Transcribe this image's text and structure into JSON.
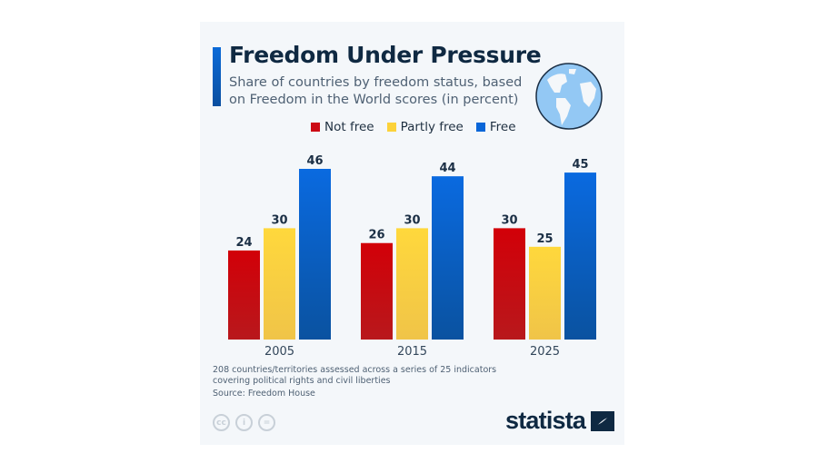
{
  "header": {
    "title": "Freedom Under Pressure",
    "subtitle": "Share of countries by freedom status, based on Freedom in the World scores (in percent)"
  },
  "icons": {
    "globe": "globe-icon",
    "cc": "cc-icon",
    "by": "attribution-icon",
    "nd": "no-derivatives-icon",
    "logo": "statista-logo"
  },
  "legend": [
    {
      "label": "Not free",
      "color": "#cc0a14"
    },
    {
      "label": "Partly free",
      "color": "#fcd23a"
    },
    {
      "label": "Free",
      "color": "#0a66d8"
    }
  ],
  "chart_data": {
    "type": "bar",
    "title": "Freedom Under Pressure",
    "subtitle": "Share of countries by freedom status, based on Freedom in the World scores (in percent)",
    "categories": [
      "2005",
      "2015",
      "2025"
    ],
    "series": [
      {
        "name": "Not free",
        "color": "#cc0a14",
        "values": [
          24,
          26,
          30
        ]
      },
      {
        "name": "Partly free",
        "color": "#fcd23a",
        "values": [
          30,
          30,
          25
        ]
      },
      {
        "name": "Free",
        "color": "#0a66d8",
        "values": [
          46,
          44,
          45
        ]
      }
    ],
    "xlabel": "",
    "ylabel": "",
    "ylim": [
      0,
      46
    ],
    "grid": false,
    "legend_position": "top-center",
    "data_labels": true
  },
  "footer": {
    "note": "208 countries/territories assessed across a series of 25 indicators covering political rights and civil liberties",
    "source": "Source: Freedom House",
    "cc_labels": [
      "cc",
      "i",
      "="
    ],
    "logo_text": "statista"
  }
}
